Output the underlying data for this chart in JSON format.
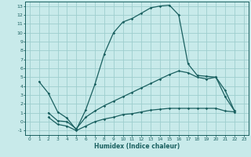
{
  "title": "",
  "xlabel": "Humidex (Indice chaleur)",
  "background_color": "#c8eaea",
  "grid_color": "#9ecece",
  "line_color": "#1a6060",
  "xlim": [
    -0.5,
    23.5
  ],
  "ylim": [
    -1.5,
    13.5
  ],
  "xticks": [
    0,
    1,
    2,
    3,
    4,
    5,
    6,
    7,
    8,
    9,
    10,
    11,
    12,
    13,
    14,
    15,
    16,
    17,
    18,
    19,
    20,
    21,
    22,
    23
  ],
  "yticks": [
    -1,
    0,
    1,
    2,
    3,
    4,
    5,
    6,
    7,
    8,
    9,
    10,
    11,
    12,
    13
  ],
  "curve1_x": [
    1,
    2,
    3,
    4,
    5,
    6,
    7,
    8,
    9,
    10,
    11,
    12,
    13,
    14,
    15,
    16,
    17,
    18,
    19,
    20,
    21,
    22
  ],
  "curve1_y": [
    4.5,
    3.2,
    1.1,
    0.4,
    -0.9,
    1.3,
    4.2,
    7.6,
    10.0,
    11.2,
    11.6,
    12.2,
    12.8,
    13.0,
    13.1,
    12.0,
    6.5,
    5.2,
    5.1,
    5.0,
    3.5,
    1.2
  ],
  "curve2_x": [
    2,
    3,
    4,
    5,
    6,
    7,
    8,
    9,
    10,
    11,
    12,
    13,
    14,
    15,
    16,
    17,
    18,
    19,
    20,
    21,
    22
  ],
  "curve2_y": [
    1.0,
    0.1,
    0.0,
    -0.8,
    0.5,
    1.2,
    1.8,
    2.3,
    2.8,
    3.3,
    3.8,
    4.3,
    4.8,
    5.3,
    5.7,
    5.5,
    5.0,
    4.8,
    5.0,
    2.8,
    1.2
  ],
  "curve3_x": [
    2,
    3,
    4,
    5,
    6,
    7,
    8,
    9,
    10,
    11,
    12,
    13,
    14,
    15,
    16,
    17,
    18,
    19,
    20,
    21,
    22
  ],
  "curve3_y": [
    0.5,
    -0.3,
    -0.5,
    -1.0,
    -0.5,
    0.0,
    0.3,
    0.5,
    0.8,
    0.9,
    1.1,
    1.3,
    1.4,
    1.5,
    1.5,
    1.5,
    1.5,
    1.5,
    1.5,
    1.2,
    1.1
  ]
}
